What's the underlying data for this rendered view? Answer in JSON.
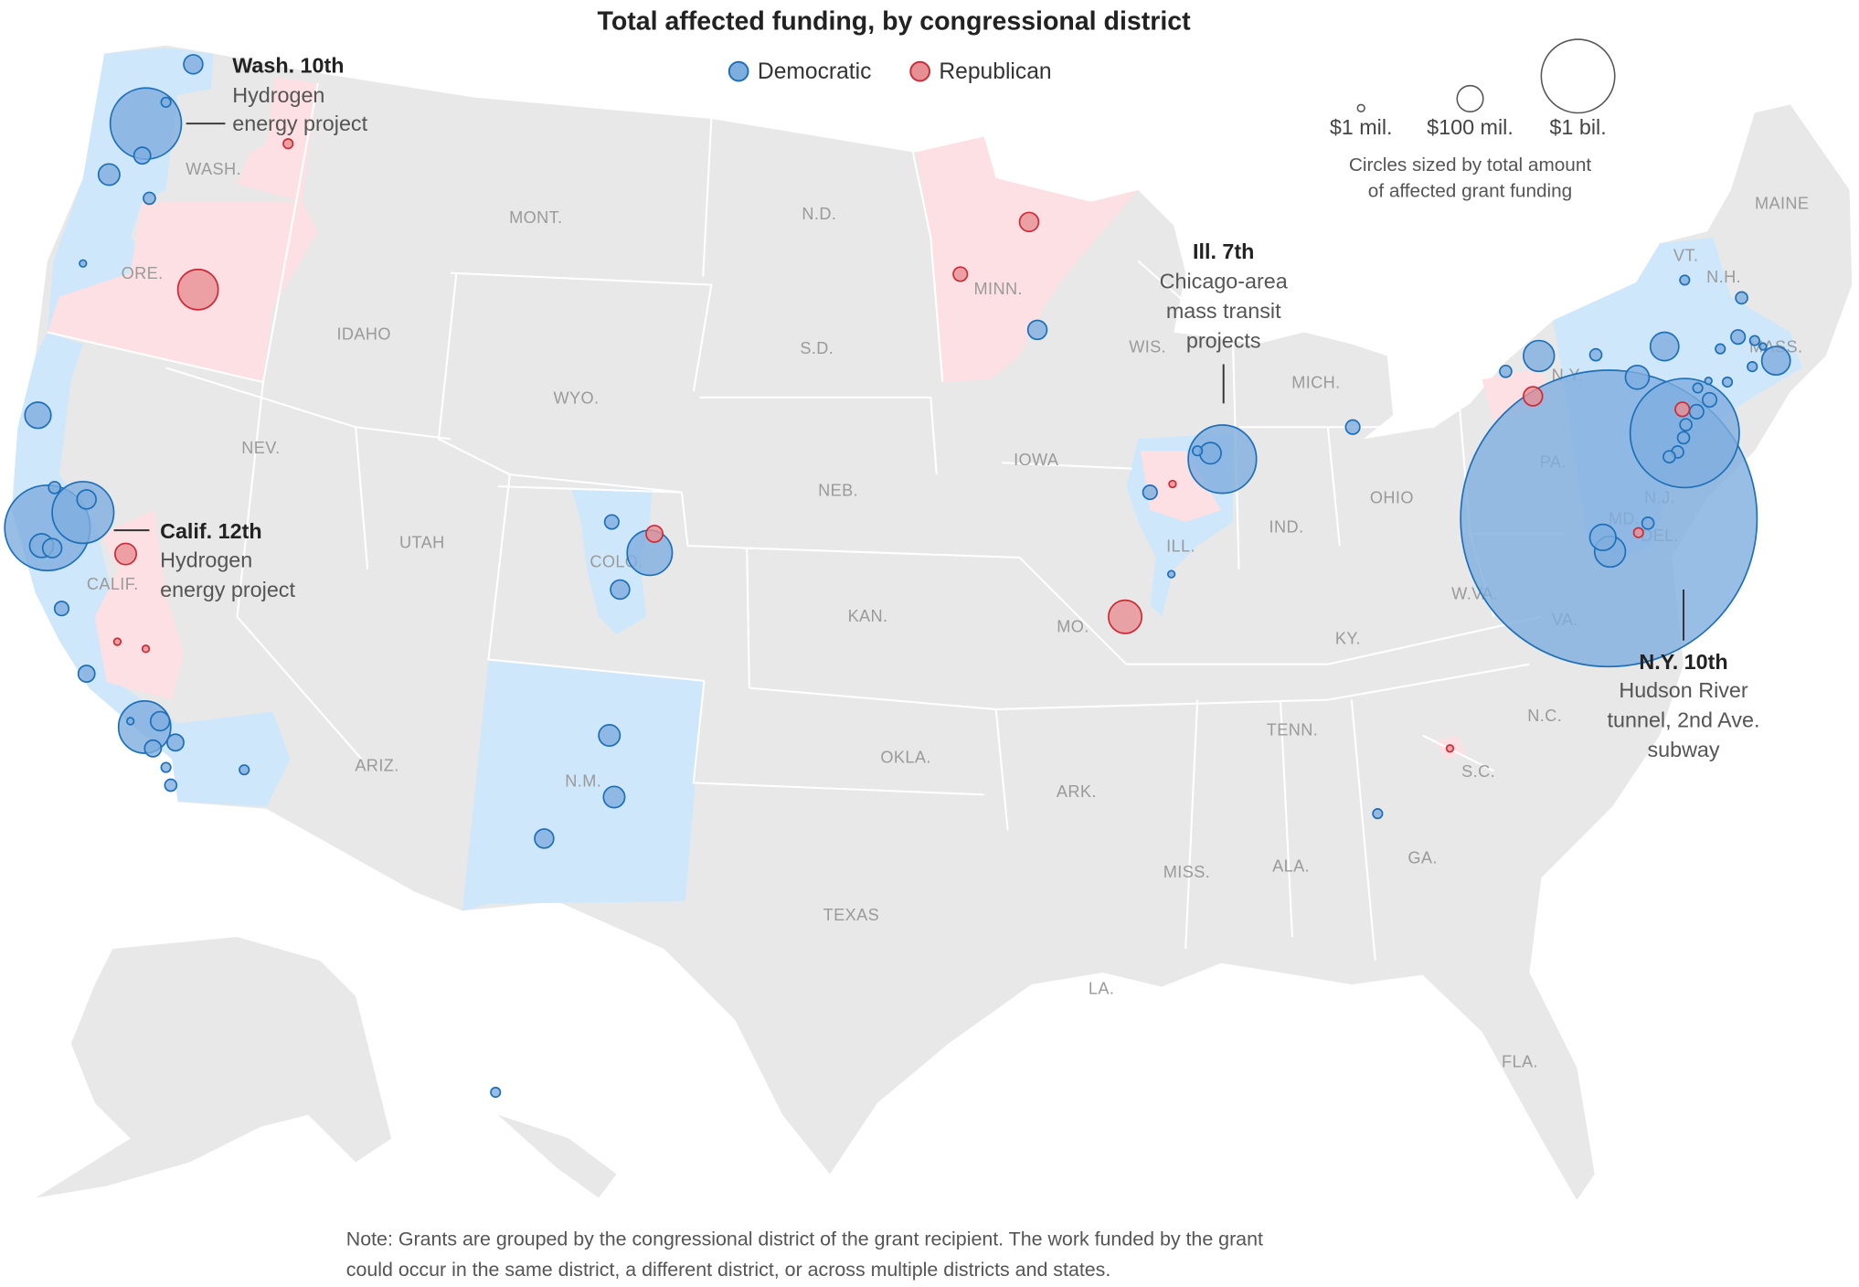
{
  "title": "Total affected funding, by congressional district",
  "legend": {
    "party": [
      {
        "label": "Democratic",
        "fill": "#7eaede",
        "stroke": "#1d6fb8"
      },
      {
        "label": "Republican",
        "fill": "#e79093",
        "stroke": "#cc2a36"
      }
    ],
    "sizes": [
      {
        "label": "$1 mil.",
        "value_mil": 1
      },
      {
        "label": "$100 mil.",
        "value_mil": 100
      },
      {
        "label": "$1 bil.",
        "value_mil": 1000
      }
    ],
    "caption_line1": "Circles sized by total amount",
    "caption_line2": "of affected grant funding"
  },
  "colors": {
    "land": "#e8e8e8",
    "dem_area": "#cfe7fa",
    "rep_area": "#fde0e3"
  },
  "state_labels": [
    "WASH.",
    "ORE.",
    "CALIF.",
    "NEV.",
    "IDAHO",
    "MONT.",
    "WYO.",
    "UTAH",
    "ARIZ.",
    "COLO.",
    "N.M.",
    "N.D.",
    "S.D.",
    "NEB.",
    "KAN.",
    "OKLA.",
    "TEXAS",
    "MINN.",
    "IOWA",
    "MO.",
    "ARK.",
    "LA.",
    "WIS.",
    "ILL.",
    "MICH.",
    "IND.",
    "OHIO",
    "KY.",
    "TENN.",
    "MISS.",
    "ALA.",
    "GA.",
    "FLA.",
    "S.C.",
    "N.C.",
    "VA.",
    "W.VA.",
    "PA.",
    "N.Y.",
    "VT.",
    "N.H.",
    "MAINE",
    "MASS.",
    "N.J.",
    "MD.",
    "DEL."
  ],
  "annotations": [
    {
      "district": "Wash. 10th",
      "lines": [
        "Hydrogen",
        "energy project"
      ]
    },
    {
      "district": "Calif. 12th",
      "lines": [
        "Hydrogen",
        "energy project"
      ]
    },
    {
      "district": "Ill. 7th",
      "lines": [
        "Chicago-area",
        "mass transit",
        "projects"
      ]
    },
    {
      "district": "N.Y. 10th",
      "lines": [
        "Hudson River",
        "tunnel, 2nd Ave.",
        "subway"
      ]
    }
  ],
  "districts": {
    "democratic_amounts_mil": [
      67,
      937,
      17,
      51,
      84,
      26,
      9,
      126,
      1349,
      703,
      67,
      26,
      104,
      67,
      37,
      51,
      9,
      504,
      67,
      51,
      51,
      17,
      26,
      17,
      37,
      376,
      67,
      84,
      84,
      67,
      67,
      861,
      84,
      2202,
      150,
      17,
      17,
      9,
      37,
      16259,
      150,
      126,
      176,
      104,
      26,
      176,
      26,
      17,
      26,
      17,
      9,
      17,
      17,
      37,
      26,
      26,
      26,
      26,
      37,
      26,
      17,
      17,
      17,
      37,
      9,
      37
    ],
    "republican_amounts_mil": [
      17,
      301,
      84,
      9,
      9,
      67,
      37,
      51,
      204,
      9,
      67,
      37,
      17,
      9
    ]
  },
  "note_line1": "Note: Grants are grouped by the congressional district of the grant recipient. The work funded by the grant",
  "note_line2": "could occur in the same district, a different district, or across multiple districts and states."
}
